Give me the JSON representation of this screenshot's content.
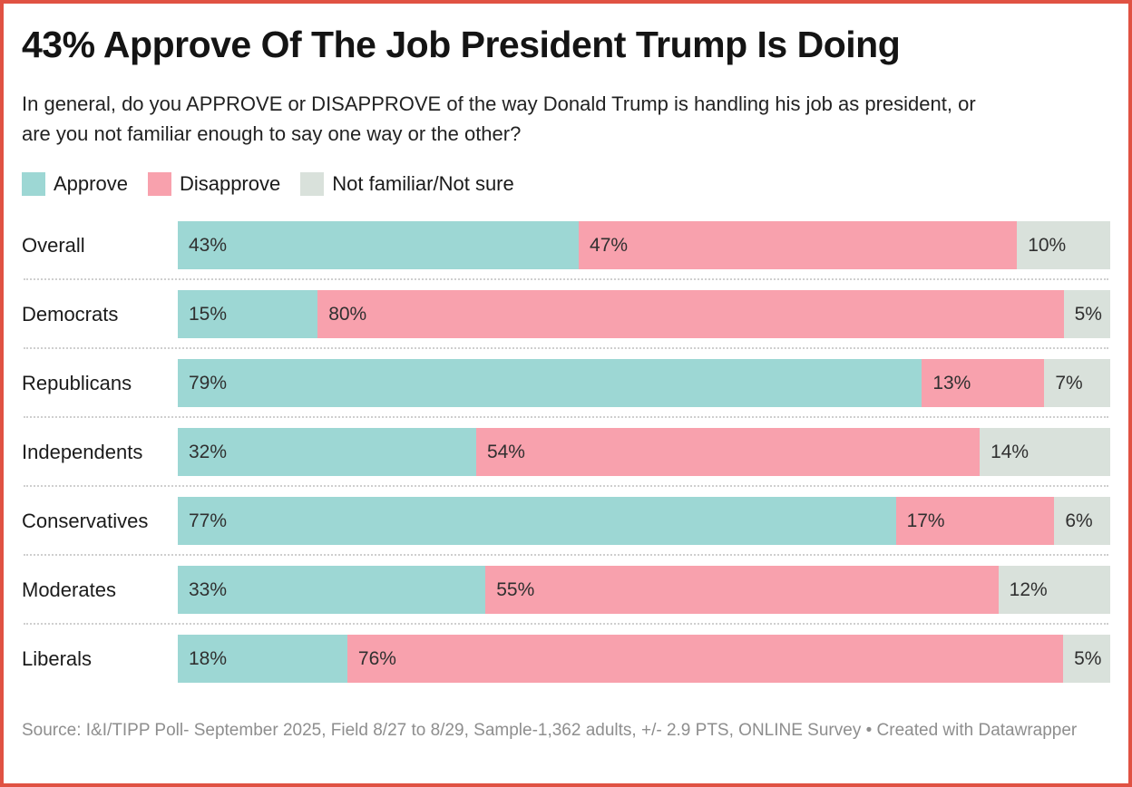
{
  "frame": {
    "border_color": "#e05243",
    "background_color": "#ffffff"
  },
  "header": {
    "title": "43% Approve Of The Job President Trump Is Doing",
    "subtitle": "In general, do you APPROVE or DISAPPROVE of the way Donald Trump is handling his job as president, or are you not familiar enough to say one way or the other?"
  },
  "legend": {
    "items": [
      {
        "label": "Approve",
        "color": "#9dd7d4"
      },
      {
        "label": "Disapprove",
        "color": "#f8a1ad"
      },
      {
        "label": "Not familiar/Not sure",
        "color": "#d9e1db"
      }
    ]
  },
  "chart_data": {
    "type": "bar",
    "variant": "horizontal-stacked",
    "title": "43% Approve Of The Job President Trump Is Doing",
    "categories": [
      "Overall",
      "Democrats",
      "Republicans",
      "Independents",
      "Conservatives",
      "Moderates",
      "Liberals"
    ],
    "series": [
      {
        "name": "Approve",
        "color": "#9dd7d4",
        "values": [
          43,
          15,
          79,
          32,
          77,
          33,
          18
        ]
      },
      {
        "name": "Disapprove",
        "color": "#f8a1ad",
        "values": [
          47,
          80,
          13,
          54,
          17,
          55,
          76
        ]
      },
      {
        "name": "Not familiar/Not sure",
        "color": "#d9e1db",
        "values": [
          10,
          5,
          7,
          14,
          6,
          12,
          5
        ]
      }
    ],
    "value_suffix": "%",
    "value_labels_shown": true,
    "axis_shown": false,
    "legend_position": "top",
    "row_separator": "dotted"
  },
  "footer": {
    "source": "Source: I&I/TIPP Poll- September 2025, Field 8/27 to 8/29, Sample-1,362 adults, +/- 2.9 PTS, ONLINE Survey",
    "separator": " • ",
    "byline": "Created with Datawrapper"
  }
}
